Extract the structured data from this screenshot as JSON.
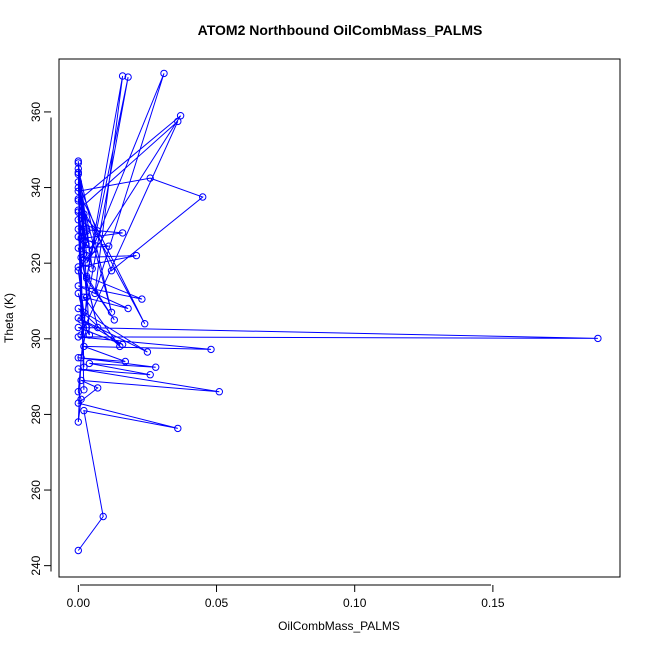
{
  "chart_data": {
    "type": "line",
    "title": "ATOM2 Northbound OilCombMass_PALMS",
    "xlabel": "OilCombMass_PALMS",
    "ylabel": "Theta (K)",
    "xlim": [
      -0.007,
      0.196
    ],
    "ylim": [
      237,
      374
    ],
    "xticks": [
      0.0,
      0.05,
      0.1,
      0.15
    ],
    "xtick_labels": [
      "0.00",
      "0.05",
      "0.10",
      "0.15"
    ],
    "yticks": [
      240,
      260,
      280,
      300,
      320,
      340,
      360
    ],
    "ytick_labels": [
      "240",
      "260",
      "280",
      "300",
      "320",
      "340",
      "360"
    ],
    "grid": false,
    "series": [
      {
        "color": "#0000ff",
        "marker": "open-circle",
        "points": [
          [
            0.0,
            244.0
          ],
          [
            0.009,
            253.0
          ],
          [
            0.002,
            281.0
          ],
          [
            0.036,
            276.3
          ],
          [
            0.0,
            283.0
          ],
          [
            0.007,
            287.0
          ],
          [
            0.001,
            289.0
          ],
          [
            0.051,
            286.0
          ],
          [
            0.0,
            292.0
          ],
          [
            0.026,
            290.5
          ],
          [
            0.004,
            293.5
          ],
          [
            0.028,
            292.5
          ],
          [
            0.0,
            295.0
          ],
          [
            0.017,
            294.0
          ],
          [
            0.002,
            298.0
          ],
          [
            0.048,
            297.2
          ],
          [
            0.0,
            300.5
          ],
          [
            0.188,
            300.1
          ],
          [
            0.0,
            303.0
          ],
          [
            0.016,
            298.5
          ],
          [
            0.0,
            305.5
          ],
          [
            0.025,
            296.5
          ],
          [
            0.0,
            308.0
          ],
          [
            0.015,
            298.0
          ],
          [
            0.002,
            311.0
          ],
          [
            0.018,
            308.0
          ],
          [
            0.0,
            314.0
          ],
          [
            0.023,
            310.5
          ],
          [
            0.003,
            316.5
          ],
          [
            0.013,
            305.0
          ],
          [
            0.0,
            319.0
          ],
          [
            0.021,
            322.0
          ],
          [
            0.001,
            321.5
          ],
          [
            0.007,
            303.0
          ],
          [
            0.0,
            324.0
          ],
          [
            0.011,
            324.5
          ],
          [
            0.001,
            326.5
          ],
          [
            0.016,
            328.0
          ],
          [
            0.0,
            329.0
          ],
          [
            0.004,
            325.0
          ],
          [
            0.0,
            331.5
          ],
          [
            0.007,
            328.5
          ],
          [
            0.0,
            334.0
          ],
          [
            0.036,
            357.5
          ],
          [
            0.001,
            301.0
          ],
          [
            0.018,
            369.2
          ],
          [
            0.003,
            316.0
          ],
          [
            0.016,
            369.5
          ],
          [
            0.006,
            312.0
          ],
          [
            0.031,
            370.2
          ],
          [
            0.003,
            320.0
          ],
          [
            0.037,
            359.0
          ],
          [
            0.0,
            336.5
          ],
          [
            0.024,
            304.0
          ],
          [
            0.0,
            339.0
          ],
          [
            0.026,
            342.5
          ],
          [
            0.045,
            337.5
          ],
          [
            0.012,
            318.0
          ],
          [
            0.0,
            341.5
          ],
          [
            0.002,
            286.5
          ],
          [
            0.0,
            344.0
          ],
          [
            0.003,
            322.0
          ],
          [
            0.0,
            346.5
          ],
          [
            0.005,
            318.5
          ],
          [
            0.0,
            343.5
          ],
          [
            0.003,
            328.5
          ],
          [
            0.0,
            340.0
          ],
          [
            0.012,
            307.0
          ],
          [
            0.0,
            345.0
          ],
          [
            0.002,
            322.5
          ],
          [
            0.003,
            329.0
          ],
          [
            0.0,
            327.0
          ],
          [
            0.005,
            323.5
          ],
          [
            0.0,
            318.0
          ],
          [
            0.002,
            307.0
          ],
          [
            0.0,
            312.0
          ],
          [
            0.003,
            303.0
          ],
          [
            0.001,
            295.0
          ],
          [
            0.0,
            278.0
          ],
          [
            0.001,
            284.0
          ],
          [
            0.0,
            286.0
          ],
          [
            0.003,
            311.0
          ],
          [
            0.0,
            337.0
          ],
          [
            0.002,
            333.0
          ],
          [
            0.0,
            333.5
          ],
          [
            0.001,
            305.0
          ],
          [
            0.004,
            301.0
          ],
          [
            0.002,
            326.0
          ],
          [
            0.0,
            347.0
          ],
          [
            0.002,
            292.5
          ]
        ]
      }
    ]
  }
}
